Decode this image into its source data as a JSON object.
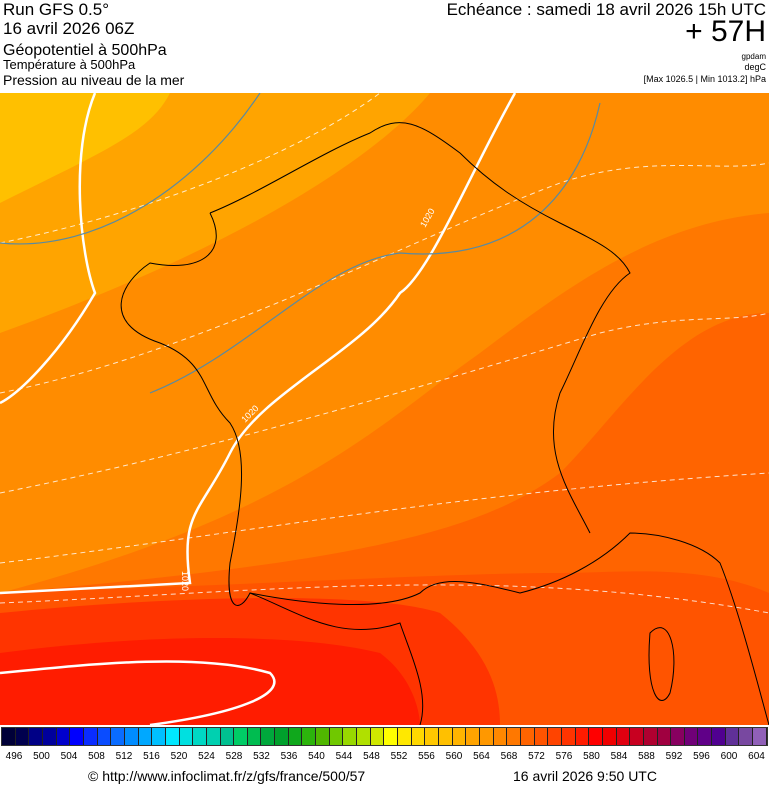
{
  "header": {
    "run": "Run GFS 0.5°",
    "run_date": "16 avril 2026 06Z",
    "param1": "Géopotentiel à 500hPa",
    "param2": "Température à 500hPa",
    "param3": "Pression au niveau de la mer",
    "echeance": "Echéance : samedi 18 avril 2026 15h UTC",
    "lead": "+ 57H",
    "unit1": "gpdam",
    "unit2": "degC",
    "pressure_range": "[Max 1026.5 | Min 1013.2] hPa"
  },
  "map": {
    "isobar_labels": [
      "1020",
      "1020",
      "1020"
    ]
  },
  "legend": {
    "labels": [
      "496",
      "500",
      "504",
      "508",
      "512",
      "516",
      "520",
      "524",
      "528",
      "532",
      "536",
      "540",
      "544",
      "548",
      "552",
      "556",
      "560",
      "564",
      "568",
      "572",
      "576",
      "580",
      "584",
      "588",
      "592",
      "596",
      "600",
      "604"
    ],
    "colors": [
      "#000038",
      "#00004e",
      "#000086",
      "#00009c",
      "#0000cc",
      "#0000ff",
      "#0a2cff",
      "#0a4cff",
      "#0a6cff",
      "#008cff",
      "#00a8ff",
      "#00c0ff",
      "#00e8ff",
      "#00e0e0",
      "#00d8c4",
      "#00d0b0",
      "#00c090",
      "#00cc66",
      "#00bc50",
      "#00a83c",
      "#00a02c",
      "#10a81c",
      "#2cb40c",
      "#50b800",
      "#70c800",
      "#98d800",
      "#b0e000",
      "#d0e800",
      "#ffff00",
      "#ffe800",
      "#ffd800",
      "#ffc800",
      "#ffc000",
      "#ffb400",
      "#ffa400",
      "#ff9800",
      "#ff8800",
      "#ff7800",
      "#ff6400",
      "#ff5400",
      "#ff4400",
      "#ff3400",
      "#ff1c00",
      "#ff0000",
      "#f00000",
      "#e00010",
      "#c80020",
      "#b00030",
      "#a00040",
      "#880060",
      "#700078",
      "#600088",
      "#500090",
      "#603098",
      "#7848a0",
      "#9060b8",
      "#a888c0",
      "#c8b0d8",
      "#d8c8e0"
    ]
  },
  "footer": {
    "url": "© http://www.infoclimat.fr/z/gfs/france/500/57",
    "timestamp": "16 avril 2026  9:50 UTC"
  }
}
